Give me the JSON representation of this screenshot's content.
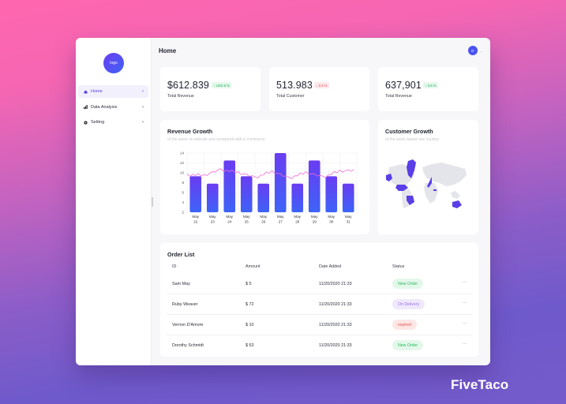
{
  "sidebar": {
    "logo": "logo",
    "items": [
      {
        "label": "Home",
        "icon": "home-icon",
        "active": true
      },
      {
        "label": "Data Analysis",
        "icon": "bar-chart-icon",
        "active": false
      },
      {
        "label": "Setting",
        "icon": "gear-icon",
        "active": false
      }
    ],
    "chevron": "›"
  },
  "header": {
    "title": "Home",
    "avatar_initial": "O",
    "avatar_chevron": "⌄"
  },
  "stats": [
    {
      "value": "$612.839",
      "change": "↑ USD 8 %",
      "trend": "up",
      "label": "Total Revenue"
    },
    {
      "value": "513.983",
      "change": "↓ 0.4 %",
      "trend": "down",
      "label": "Total Customer"
    },
    {
      "value": "637,901",
      "change": "↑ 0.8 %",
      "trend": "up",
      "label": "Total Revenue"
    }
  ],
  "revenue_chart": {
    "title": "Revenue Growth",
    "subtitle": "of the week on website and compared with e-commerce"
  },
  "customer_chart": {
    "title": "Customer Growth",
    "subtitle": "of the week based one country"
  },
  "chart_data": {
    "type": "bar",
    "title": "Revenue Growth",
    "subtitle": "of the week on website and compared with e-commerce",
    "categories": [
      "May 22",
      "May 23",
      "May 24",
      "May 25",
      "May 26",
      "May 27",
      "May 28",
      "May 29",
      "May 30",
      "May 31"
    ],
    "series": [
      {
        "name": "website",
        "type": "bar",
        "values": [
          9.3,
          7.8,
          12.5,
          9.3,
          7.8,
          14,
          7.8,
          12.5,
          9.3,
          7.8
        ]
      },
      {
        "name": "e-commerce",
        "type": "line",
        "values": [
          9.6,
          9.5,
          10.6,
          10.1,
          9.0,
          10.3,
          8.9,
          10.1,
          9.1,
          10.4
        ]
      }
    ],
    "xlabel": "",
    "ylabel": "",
    "yticks": [
      2,
      4,
      6,
      8,
      10,
      12,
      14
    ],
    "ylim": [
      2,
      14
    ],
    "grid": true,
    "colors": {
      "bar_top": "#6a3cf2",
      "bar_bottom": "#3d63f7",
      "line": "#f06bd8"
    }
  },
  "orders": {
    "title": "Order List",
    "columns": [
      "ID",
      "Amount",
      "Date Added",
      "Status"
    ],
    "sort_icon": "↕",
    "rows": [
      {
        "name": "Sam May",
        "amount": "$ 5",
        "date": "11/20/2020 21:33",
        "status": "New Order",
        "status_type": "green"
      },
      {
        "name": "Ruby Weaver",
        "amount": "$ 72",
        "date": "11/20/2020 21:33",
        "status": "On Delivery",
        "status_type": "purple"
      },
      {
        "name": "Vernon D'Amore",
        "amount": "$ 10",
        "date": "11/20/2020 21:33",
        "status": "expired",
        "status_type": "red"
      },
      {
        "name": "Dorothy Schmidt",
        "amount": "$ 63",
        "date": "11/20/2020 21:33",
        "status": "New Order",
        "status_type": "green"
      }
    ],
    "more_label": "···"
  },
  "brand": "FiveTaco"
}
